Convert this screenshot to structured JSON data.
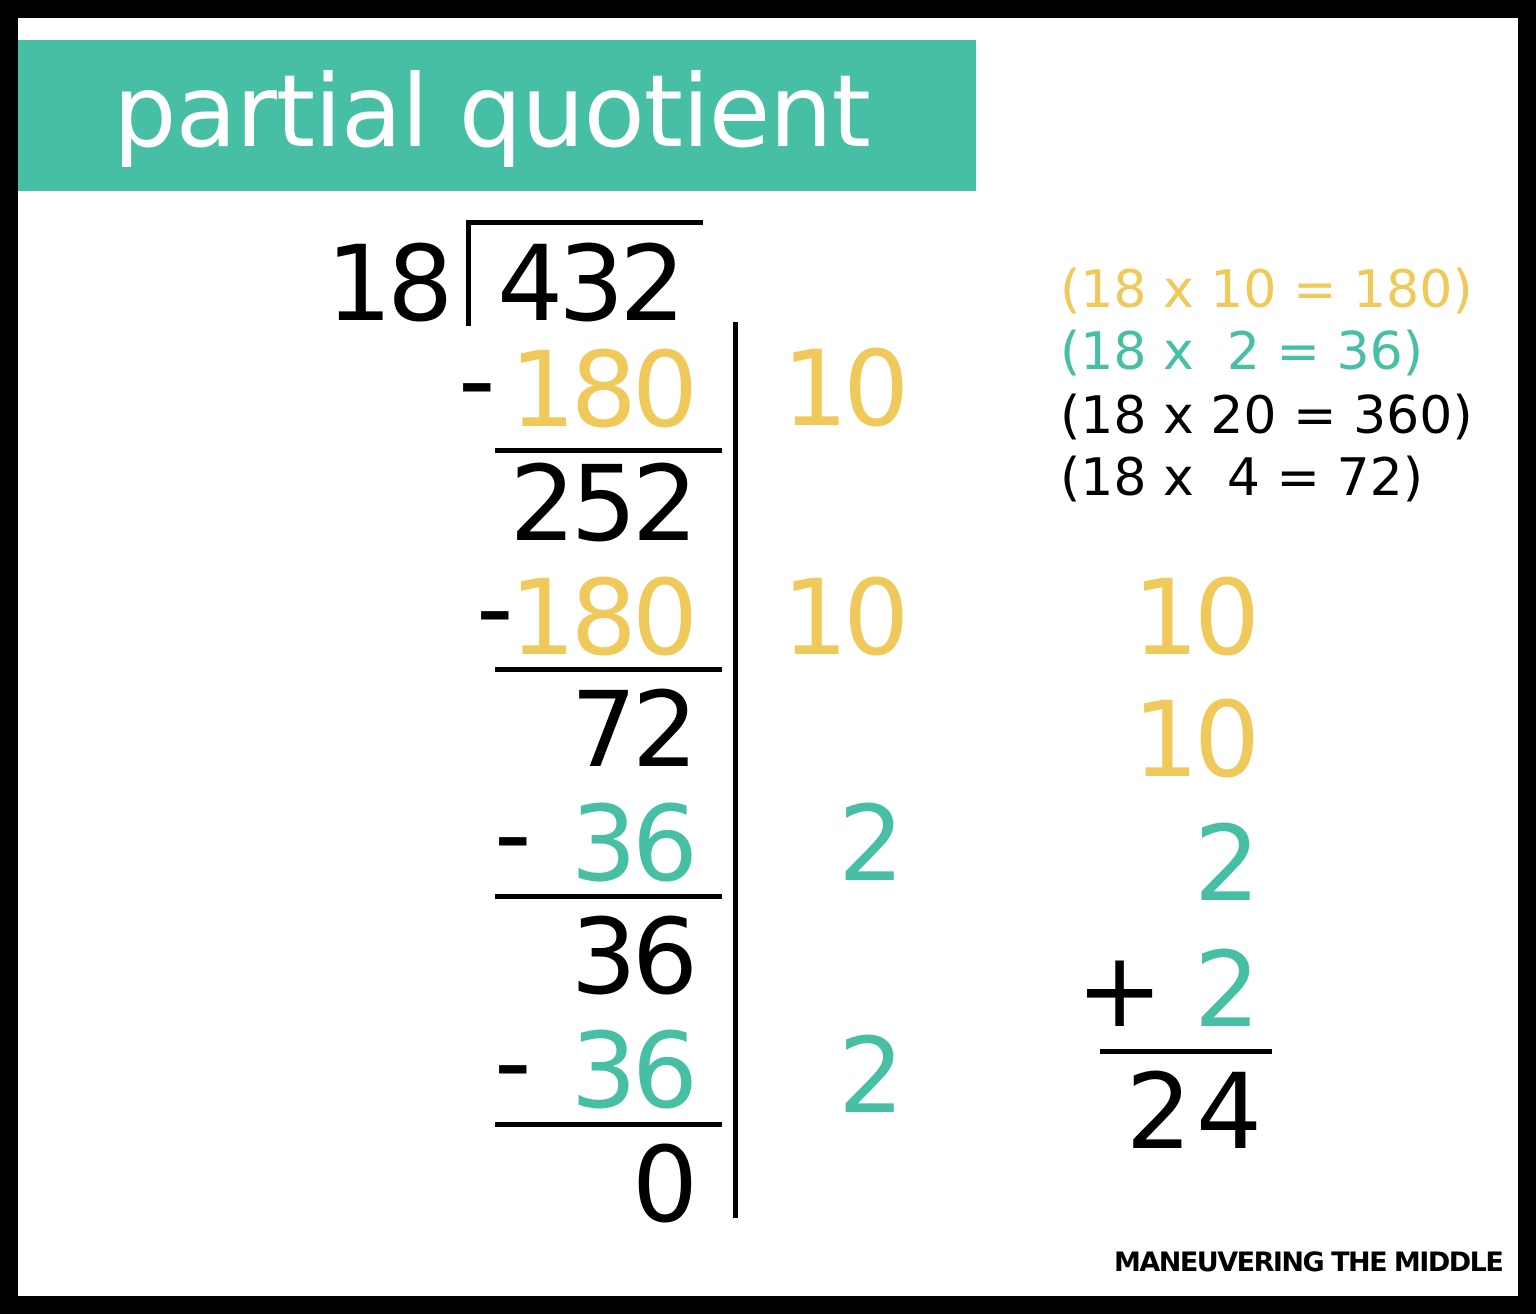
{
  "title": "partial quotient",
  "colors": {
    "accent_teal": "#46BFA4",
    "accent_yellow": "#EFC95A",
    "text": "#000000"
  },
  "problem": {
    "divisor": "18",
    "dividend": "432"
  },
  "steps": [
    {
      "minus": "-",
      "subtract": "180",
      "color": "yellow",
      "partial_quotient": "10",
      "remainder": "252"
    },
    {
      "minus": "-",
      "subtract": "180",
      "color": "yellow",
      "partial_quotient": "10",
      "remainder": "72"
    },
    {
      "minus": "-",
      "subtract": "36",
      "color": "teal",
      "partial_quotient": "2",
      "remainder": "36"
    },
    {
      "minus": "-",
      "subtract": "36",
      "color": "teal",
      "partial_quotient": "2",
      "remainder": "0"
    }
  ],
  "facts": [
    {
      "text": "(18 x 10 = 180)",
      "color": "yellow"
    },
    {
      "text": "(18 x  2 = 36)",
      "color": "teal"
    },
    {
      "text": "(18 x 20 = 360)",
      "color": "black"
    },
    {
      "text": "(18 x  4 = 72)",
      "color": "black"
    }
  ],
  "sum": {
    "addends": [
      "10",
      "10",
      "2",
      "2"
    ],
    "plus": "+",
    "total": "24"
  },
  "footer": "MANEUVERING THE MIDDLE"
}
